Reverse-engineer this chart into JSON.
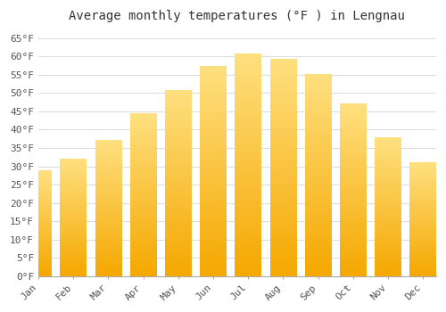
{
  "title": "Average monthly temperatures (°F ) in Lengnau",
  "months": [
    "Jan",
    "Feb",
    "Mar",
    "Apr",
    "May",
    "Jun",
    "Jul",
    "Aug",
    "Sep",
    "Oct",
    "Nov",
    "Dec"
  ],
  "values": [
    28.9,
    32.0,
    37.0,
    44.5,
    50.8,
    57.2,
    60.8,
    59.2,
    55.2,
    47.0,
    37.8,
    31.0
  ],
  "bar_color_bottom": "#F5A800",
  "bar_color_top": "#FFE080",
  "background_color": "#ffffff",
  "grid_color": "#dddddd",
  "ylim": [
    0,
    68
  ],
  "yticks": [
    0,
    5,
    10,
    15,
    20,
    25,
    30,
    35,
    40,
    45,
    50,
    55,
    60,
    65
  ],
  "title_fontsize": 10,
  "tick_fontsize": 8,
  "tick_color": "#555555"
}
